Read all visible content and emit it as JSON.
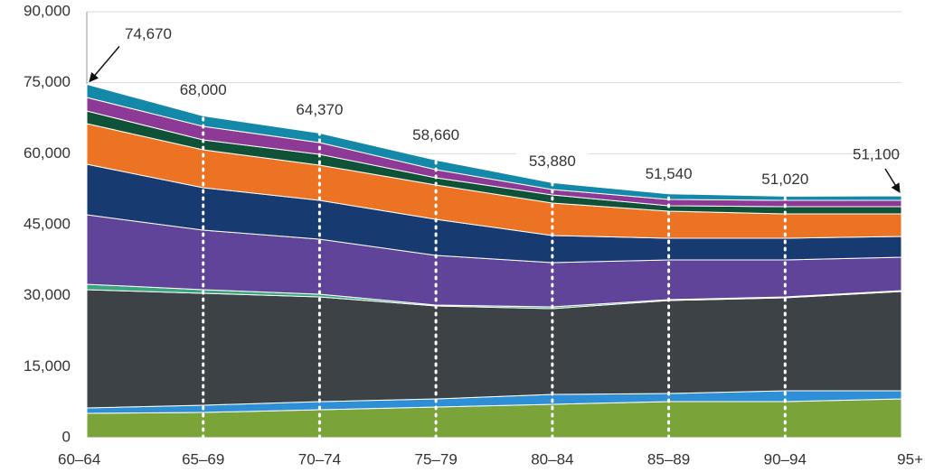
{
  "chart_data": {
    "type": "stacked-area",
    "categories": [
      "60–64",
      "65–69",
      "70–74",
      "75–79",
      "80–84",
      "85–89",
      "90–94",
      "95+"
    ],
    "series": [
      {
        "color": "#7aa33a",
        "values": [
          5150,
          5340,
          5910,
          6480,
          7060,
          7630,
          7630,
          8200
        ]
      },
      {
        "color": "#2e8fd6",
        "values": [
          1140,
          1530,
          1720,
          1720,
          2090,
          1710,
          2290,
          1720
        ]
      },
      {
        "color": "#3c4245",
        "values": [
          24980,
          23640,
          22120,
          19640,
          18120,
          19650,
          19640,
          20970
        ]
      },
      {
        "color": "#3aa57e",
        "values": [
          1150,
          760,
          570,
          190,
          380,
          190,
          190,
          190
        ]
      },
      {
        "color": "#60449a",
        "values": [
          14680,
          12590,
          11630,
          10490,
          9350,
          8390,
          7820,
          7060
        ]
      },
      {
        "color": "#173a70",
        "values": [
          10680,
          8960,
          8200,
          7630,
          5720,
          4570,
          4570,
          4390
        ]
      },
      {
        "color": "#ec7324",
        "values": [
          8580,
          8010,
          7440,
          7250,
          6860,
          5720,
          5150,
          4760
        ]
      },
      {
        "color": "#0f5238",
        "values": [
          2670,
          2100,
          2290,
          1520,
          1720,
          1150,
          1530,
          1530
        ]
      },
      {
        "color": "#8c3a96",
        "values": [
          2860,
          2860,
          2480,
          1720,
          1140,
          1340,
          1330,
          1330
        ]
      },
      {
        "color": "#1488a8",
        "values": [
          2780,
          2210,
          2010,
          2020,
          1440,
          1190,
          870,
          950
        ]
      }
    ],
    "totals": {
      "values": [
        74670,
        68000,
        64370,
        58660,
        53880,
        51540,
        51020,
        51100
      ],
      "value_labels": [
        "74,670",
        "68,000",
        "64,370",
        "58,660",
        "53,880",
        "51,540",
        "51,020",
        "51,100"
      ]
    },
    "ylim": [
      0,
      90000
    ],
    "yticks": [
      0,
      {
        "value": 15000,
        "label": "15,000"
      },
      {
        "value": 30000,
        "label": "30,000"
      },
      {
        "value": 45000,
        "label": "45,000"
      },
      {
        "value": 60000,
        "label": "60,000"
      },
      {
        "value": 75000,
        "label": "75,000"
      },
      {
        "value": 90000,
        "label": "90,000"
      }
    ],
    "grid": true
  }
}
